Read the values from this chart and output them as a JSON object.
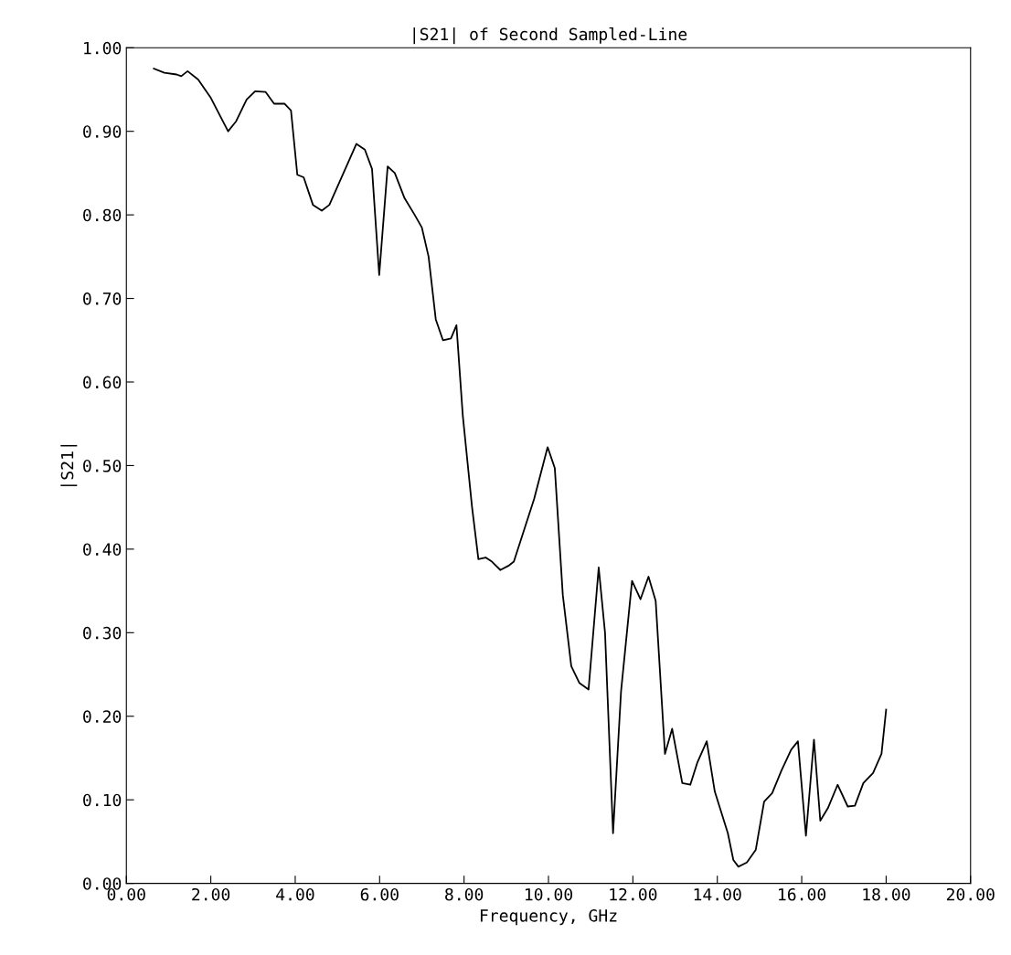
{
  "chart_data": {
    "type": "line",
    "title": "|S21| of Second Sampled-Line",
    "xlabel": "Frequency, GHz",
    "ylabel": "|S21|",
    "xlim": [
      0,
      20
    ],
    "ylim": [
      0,
      1
    ],
    "xticks": [
      {
        "value": 0,
        "label": "0.00"
      },
      {
        "value": 2,
        "label": "2.00"
      },
      {
        "value": 4,
        "label": "4.00"
      },
      {
        "value": 6,
        "label": "6.00"
      },
      {
        "value": 8,
        "label": "8.00"
      },
      {
        "value": 10,
        "label": "10.00"
      },
      {
        "value": 12,
        "label": "12.00"
      },
      {
        "value": 14,
        "label": "14.00"
      },
      {
        "value": 16,
        "label": "16.00"
      },
      {
        "value": 18,
        "label": "18.00"
      },
      {
        "value": 20,
        "label": "20.00"
      }
    ],
    "yticks": [
      {
        "value": 0,
        "label": "0.00"
      },
      {
        "value": 0.1,
        "label": "0.10"
      },
      {
        "value": 0.2,
        "label": "0.20"
      },
      {
        "value": 0.3,
        "label": "0.30"
      },
      {
        "value": 0.4,
        "label": "0.40"
      },
      {
        "value": 0.5,
        "label": "0.50"
      },
      {
        "value": 0.6,
        "label": "0.60"
      },
      {
        "value": 0.7,
        "label": "0.70"
      },
      {
        "value": 0.8,
        "label": "0.80"
      },
      {
        "value": 0.9,
        "label": "0.90"
      },
      {
        "value": 1,
        "label": "1.00"
      }
    ],
    "grid": false,
    "legend": false,
    "series": [
      {
        "color": "#000000",
        "x": [
          0.65,
          0.9,
          1.19,
          1.3,
          1.45,
          1.7,
          2.0,
          2.41,
          2.6,
          2.85,
          3.05,
          3.3,
          3.5,
          3.75,
          3.9,
          4.05,
          4.2,
          4.42,
          4.63,
          4.81,
          5.45,
          5.65,
          5.82,
          5.99,
          6.19,
          6.36,
          6.59,
          6.83,
          7.0,
          7.16,
          7.33,
          7.5,
          7.69,
          7.82,
          7.97,
          8.19,
          8.34,
          8.51,
          8.66,
          8.86,
          9.05,
          9.18,
          9.66,
          9.98,
          10.15,
          10.34,
          10.54,
          10.73,
          10.95,
          11.19,
          11.34,
          11.53,
          11.72,
          11.98,
          12.18,
          12.37,
          12.54,
          12.76,
          12.93,
          13.17,
          13.36,
          13.53,
          13.75,
          13.94,
          14.25,
          14.38,
          14.5,
          14.7,
          14.91,
          15.11,
          15.3,
          15.52,
          15.75,
          15.91,
          16.1,
          16.29,
          16.44,
          16.62,
          16.85,
          17.09,
          17.26,
          17.46,
          17.69,
          17.89,
          18.0
        ],
        "values": [
          0.975,
          0.97,
          0.968,
          0.966,
          0.972,
          0.962,
          0.94,
          0.9,
          0.912,
          0.938,
          0.948,
          0.947,
          0.933,
          0.933,
          0.925,
          0.848,
          0.845,
          0.812,
          0.805,
          0.812,
          0.885,
          0.878,
          0.855,
          0.728,
          0.858,
          0.85,
          0.82,
          0.8,
          0.785,
          0.75,
          0.675,
          0.65,
          0.652,
          0.668,
          0.56,
          0.45,
          0.388,
          0.39,
          0.385,
          0.375,
          0.38,
          0.385,
          0.46,
          0.522,
          0.497,
          0.345,
          0.26,
          0.24,
          0.232,
          0.378,
          0.3,
          0.06,
          0.23,
          0.362,
          0.34,
          0.367,
          0.338,
          0.155,
          0.185,
          0.12,
          0.118,
          0.145,
          0.17,
          0.11,
          0.06,
          0.028,
          0.02,
          0.025,
          0.04,
          0.098,
          0.108,
          0.135,
          0.16,
          0.17,
          0.057,
          0.172,
          0.075,
          0.09,
          0.118,
          0.092,
          0.093,
          0.12,
          0.132,
          0.155,
          0.208
        ]
      }
    ]
  }
}
